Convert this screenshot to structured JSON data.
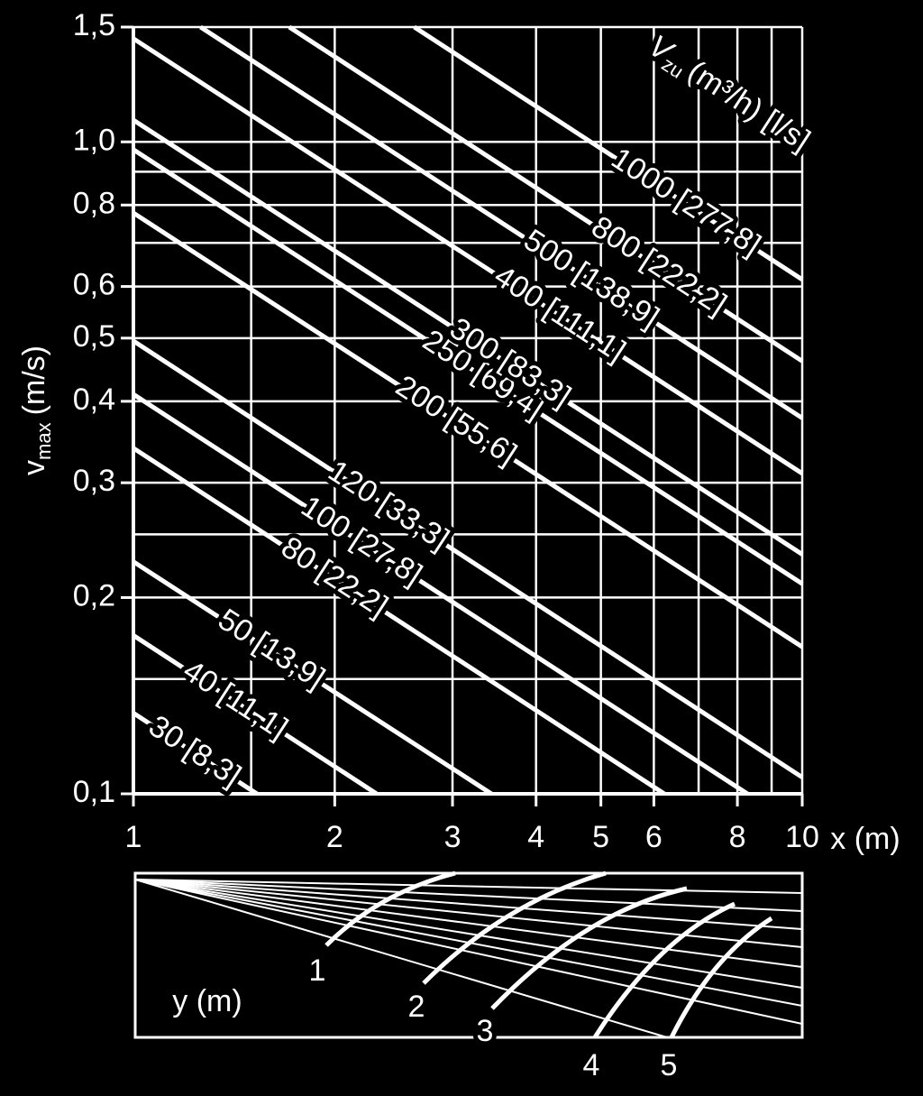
{
  "chart_data": {
    "type": "line",
    "xlog": true,
    "ylog": true,
    "grid": true,
    "xlim": [
      1,
      10
    ],
    "ylim": [
      0.1,
      1.5
    ],
    "xticks": [
      1,
      2,
      3,
      4,
      5,
      6,
      8,
      10
    ],
    "xminorticks": [
      1.5,
      7,
      9
    ],
    "yticks": [
      {
        "value": 0.1,
        "label": "0,1"
      },
      {
        "value": 0.2,
        "label": "0,2"
      },
      {
        "value": 0.3,
        "label": "0,3"
      },
      {
        "value": 0.4,
        "label": "0,4"
      },
      {
        "value": 0.5,
        "label": "0,5"
      },
      {
        "value": 0.6,
        "label": "0,6"
      },
      {
        "value": 0.8,
        "label": "0,8"
      },
      {
        "value": 1.0,
        "label": "1,0"
      },
      {
        "value": 1.5,
        "label": "1,5"
      }
    ],
    "yminorticks": [
      0.15,
      0.25,
      0.7,
      0.9
    ],
    "xlabel": "x (m)",
    "ylabel": {
      "main": "v",
      "sub": "max",
      "unit": "(m/s)"
    },
    "legend_title": {
      "symbol": "V",
      "sub": "zu",
      "unit": "(m³/h) [l/s]"
    },
    "color": "#ffffff",
    "series": [
      {
        "name": "30 [8,3]",
        "x": [
          1,
          1.53
        ],
        "values": [
          0.133,
          0.1
        ]
      },
      {
        "name": "40 [11,1]",
        "x": [
          1,
          2.31
        ],
        "values": [
          0.175,
          0.1
        ]
      },
      {
        "name": "50 [13,9]",
        "x": [
          1,
          3.43
        ],
        "values": [
          0.227,
          0.1
        ]
      },
      {
        "name": "80 [22,2]",
        "x": [
          1,
          6.22
        ],
        "values": [
          0.339,
          0.1
        ]
      },
      {
        "name": "100 [27,8]",
        "x": [
          1,
          8.28
        ],
        "values": [
          0.41,
          0.1
        ]
      },
      {
        "name": "120 [33,3]",
        "x": [
          1,
          10
        ],
        "values": [
          0.495,
          0.106
        ]
      },
      {
        "name": "200 [55,6]",
        "x": [
          1,
          10
        ],
        "values": [
          0.778,
          0.168
        ]
      },
      {
        "name": "250 [69,4]",
        "x": [
          1,
          10
        ],
        "values": [
          0.973,
          0.21
        ]
      },
      {
        "name": "300 [83,3]",
        "x": [
          1,
          10
        ],
        "values": [
          1.08,
          0.233
        ]
      },
      {
        "name": "400 [111,1]",
        "x": [
          1,
          10
        ],
        "values": [
          1.44,
          0.31
        ]
      },
      {
        "name": "500 [138,9]",
        "x": [
          1.26,
          10
        ],
        "values": [
          1.5,
          0.377
        ]
      },
      {
        "name": "800 [222,2]",
        "x": [
          1.71,
          10
        ],
        "values": [
          1.5,
          0.461
        ]
      },
      {
        "name": "1000 [277,8]",
        "x": [
          2.63,
          10
        ],
        "values": [
          1.5,
          0.615
        ]
      }
    ]
  },
  "lower_panel": {
    "ylabel": "y (m)",
    "curve_labels": [
      "1",
      "2",
      "3",
      "4",
      "5"
    ]
  }
}
